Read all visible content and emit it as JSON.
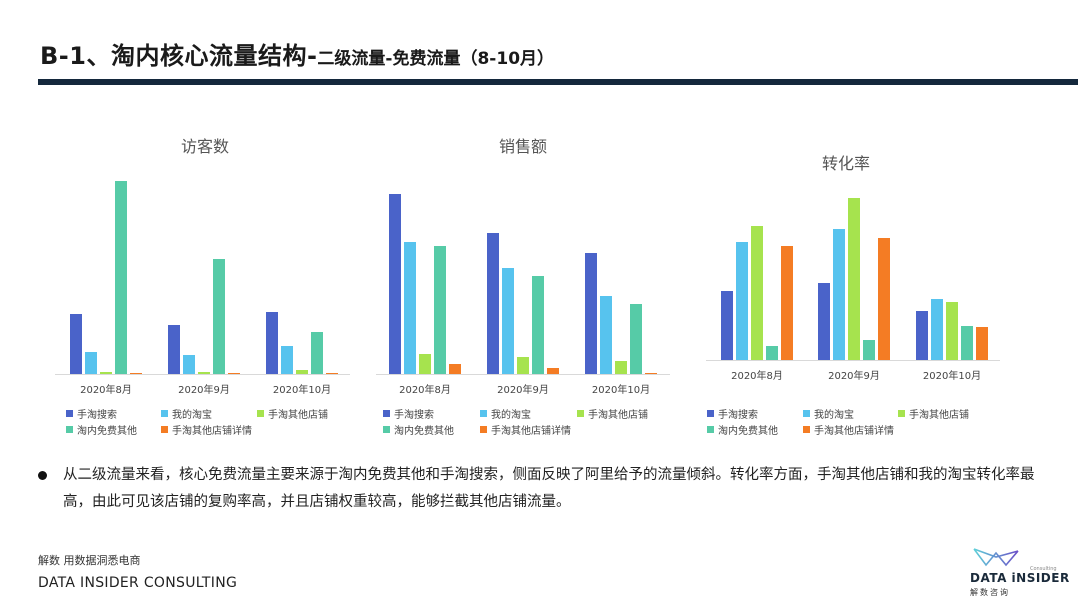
{
  "header": {
    "title_main": "B-1、淘内核心流量结构-",
    "title_sub": "二级流量-免费流量（8-10月）",
    "bar_color": "#14283c"
  },
  "series_colors": {
    "手淘搜索": "#4a63c9",
    "我的淘宝": "#57c3ee",
    "手淘其他店铺": "#a6e34e",
    "淘内免费其他": "#56cba7",
    "手淘其他店铺详情": "#f47c24"
  },
  "chart_data": [
    {
      "type": "bar",
      "title": "访客数",
      "categories": [
        "2020年8月",
        "2020年9月",
        "2020年10月"
      ],
      "series": [
        {
          "name": "手淘搜索",
          "values": [
            60,
            49,
            62
          ]
        },
        {
          "name": "我的淘宝",
          "values": [
            22,
            19,
            28
          ]
        },
        {
          "name": "手淘其他店铺",
          "values": [
            2,
            2,
            4
          ]
        },
        {
          "name": "淘内免费其他",
          "values": [
            193,
            115,
            42
          ]
        },
        {
          "name": "手淘其他店铺详情",
          "values": [
            1,
            1,
            1.5
          ]
        }
      ],
      "xlabel": "",
      "ylabel": "",
      "ylim": [
        0,
        200
      ],
      "grid": false,
      "legend_position": "bottom",
      "note": "values are relative bar heights (no axis shown)"
    },
    {
      "type": "bar",
      "title": "销售额",
      "categories": [
        "2020年8月",
        "2020年9月",
        "2020年10月"
      ],
      "series": [
        {
          "name": "手淘搜索",
          "values": [
            180,
            141,
            121
          ]
        },
        {
          "name": "我的淘宝",
          "values": [
            132,
            106,
            78
          ]
        },
        {
          "name": "手淘其他店铺",
          "values": [
            20,
            17,
            13
          ]
        },
        {
          "name": "淘内免费其他",
          "values": [
            128,
            98,
            70
          ]
        },
        {
          "name": "手淘其他店铺详情",
          "values": [
            10,
            6,
            1.5
          ]
        }
      ],
      "xlabel": "",
      "ylabel": "",
      "ylim": [
        0,
        200
      ],
      "grid": false,
      "legend_position": "bottom",
      "note": "values are relative bar heights (no axis shown)"
    },
    {
      "type": "bar",
      "title": "转化率",
      "categories": [
        "2020年8月",
        "2020年9月",
        "2020年10月"
      ],
      "series": [
        {
          "name": "手淘搜索",
          "values": [
            69,
            77,
            49
          ]
        },
        {
          "name": "我的淘宝",
          "values": [
            118,
            131,
            61
          ]
        },
        {
          "name": "手淘其他店铺",
          "values": [
            134,
            162,
            58
          ]
        },
        {
          "name": "淘内免费其他",
          "values": [
            14,
            20,
            34
          ]
        },
        {
          "name": "手淘其他店铺详情",
          "values": [
            114,
            122,
            33
          ]
        }
      ],
      "xlabel": "",
      "ylabel": "",
      "ylim": [
        0,
        170
      ],
      "grid": false,
      "legend_position": "bottom",
      "note": "values are relative bar heights (no axis shown)"
    }
  ],
  "legend_labels": [
    "手淘搜索",
    "我的淘宝",
    "手淘其他店铺",
    "淘内免费其他",
    "手淘其他店铺详情"
  ],
  "body": {
    "bullet_text": "从二级流量来看，核心免费流量主要来源于淘内免费其他和手淘搜索，侧面反映了阿里给予的流量倾斜。转化率方面，手淘其他店铺和我的淘宝转化率最高，由此可见该店铺的复购率高，并且店铺权重较高，能够拦截其他店铺流量。"
  },
  "footer": {
    "tagline_cn": "解数 用数据洞悉电商",
    "company_en": "DATA INSIDER CONSULTING",
    "logo_en": "DATA iNSIDER",
    "logo_cn": "解数咨询",
    "logo_tag": "Consulting"
  }
}
